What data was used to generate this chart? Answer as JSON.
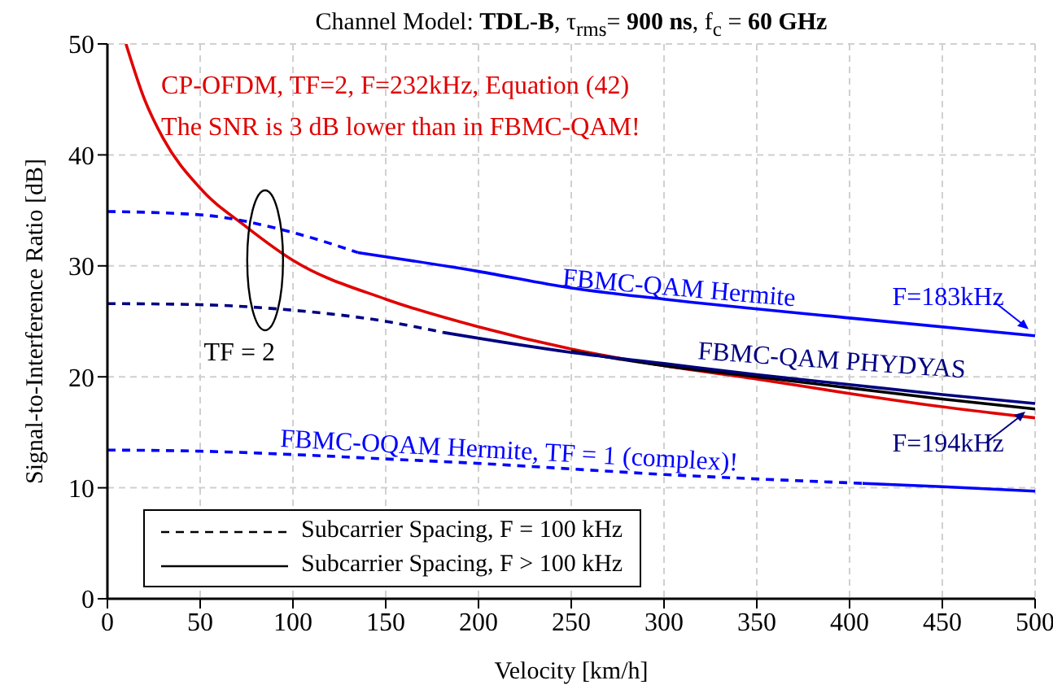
{
  "chart_data": {
    "type": "line",
    "title": "Channel Model: **TDL-B**, τ$_{rms}$= **900 ns**, f$_{c}$ = **60 GHz**",
    "xlabel": "Velocity [km/h]",
    "ylabel": "Signal-to-Interference Ratio [dB]",
    "xlim": [
      0,
      500
    ],
    "ylim": [
      0,
      50
    ],
    "xticks": [
      0,
      50,
      100,
      150,
      200,
      250,
      300,
      350,
      400,
      450,
      500
    ],
    "yticks": [
      0,
      10,
      20,
      30,
      40,
      50
    ],
    "grid": true,
    "marker": "none",
    "series": [
      {
        "color": "#e00000",
        "line_style": "solid",
        "x": [
          10,
          20,
          30,
          50,
          75,
          100,
          150,
          200,
          250,
          300,
          350,
          400,
          450,
          500
        ],
        "values": [
          50,
          45,
          41.5,
          37,
          33.5,
          30.5,
          27,
          24.5,
          22.5,
          21,
          19.8,
          18.5,
          17.3,
          16.3
        ]
      },
      {
        "color": "#000000",
        "line_style": "solid",
        "x": [
          250,
          300,
          350,
          400,
          450,
          500
        ],
        "values": [
          22.3,
          21,
          20,
          19,
          18,
          17.1
        ]
      },
      {
        "color": "#0000ff",
        "line_style": "dashed",
        "x": [
          0,
          50,
          100,
          135
        ],
        "values": [
          34.9,
          34.6,
          33,
          31.2
        ]
      },
      {
        "color": "#0000ff",
        "line_style": "solid",
        "x": [
          135,
          200,
          250,
          300,
          400,
          500
        ],
        "values": [
          31.2,
          29.5,
          28,
          27,
          25.3,
          23.7
        ]
      },
      {
        "color": "#000080",
        "line_style": "dashed",
        "x": [
          0,
          50,
          100,
          150,
          181
        ],
        "values": [
          26.6,
          26.5,
          26,
          25,
          24
        ]
      },
      {
        "color": "#000080",
        "line_style": "solid",
        "x": [
          181,
          250,
          300,
          350,
          400,
          450,
          500
        ],
        "values": [
          24,
          22.2,
          21.2,
          20.2,
          19.3,
          18.4,
          17.6
        ]
      },
      {
        "color": "#0000ff",
        "line_style": "dashed",
        "x": [
          0,
          50,
          100,
          150,
          200,
          250,
          300,
          350,
          407
        ],
        "values": [
          13.4,
          13.3,
          13,
          12.6,
          12.2,
          11.7,
          11.2,
          10.8,
          10.4
        ]
      },
      {
        "color": "#0000ff",
        "line_style": "solid",
        "x": [
          407,
          450,
          500
        ],
        "values": [
          10.4,
          10.1,
          9.7
        ]
      }
    ],
    "annotations": [
      "CP-OFDM, TF=2, F=232kHz, Equation (42)",
      "The SNR is 3 dB lower than in FBMC-QAM!",
      "TF = 2",
      {
        "text": "FBMC-QAM Hermite",
        "x": 245,
        "y": 28.2
      },
      "F=183kHz",
      {
        "text": "FBMC-QAM PHYDYAS",
        "x": 318,
        "y": 21.6
      },
      "F=194kHz",
      {
        "text": "FBMC-OQAM Hermite, TF = 1 (complex)!",
        "x": 93,
        "y": 13.7
      },
      "Subcarrier Spacing, F = 100 kHz",
      "Subcarrier Spacing, F > 100 kHz"
    ]
  }
}
